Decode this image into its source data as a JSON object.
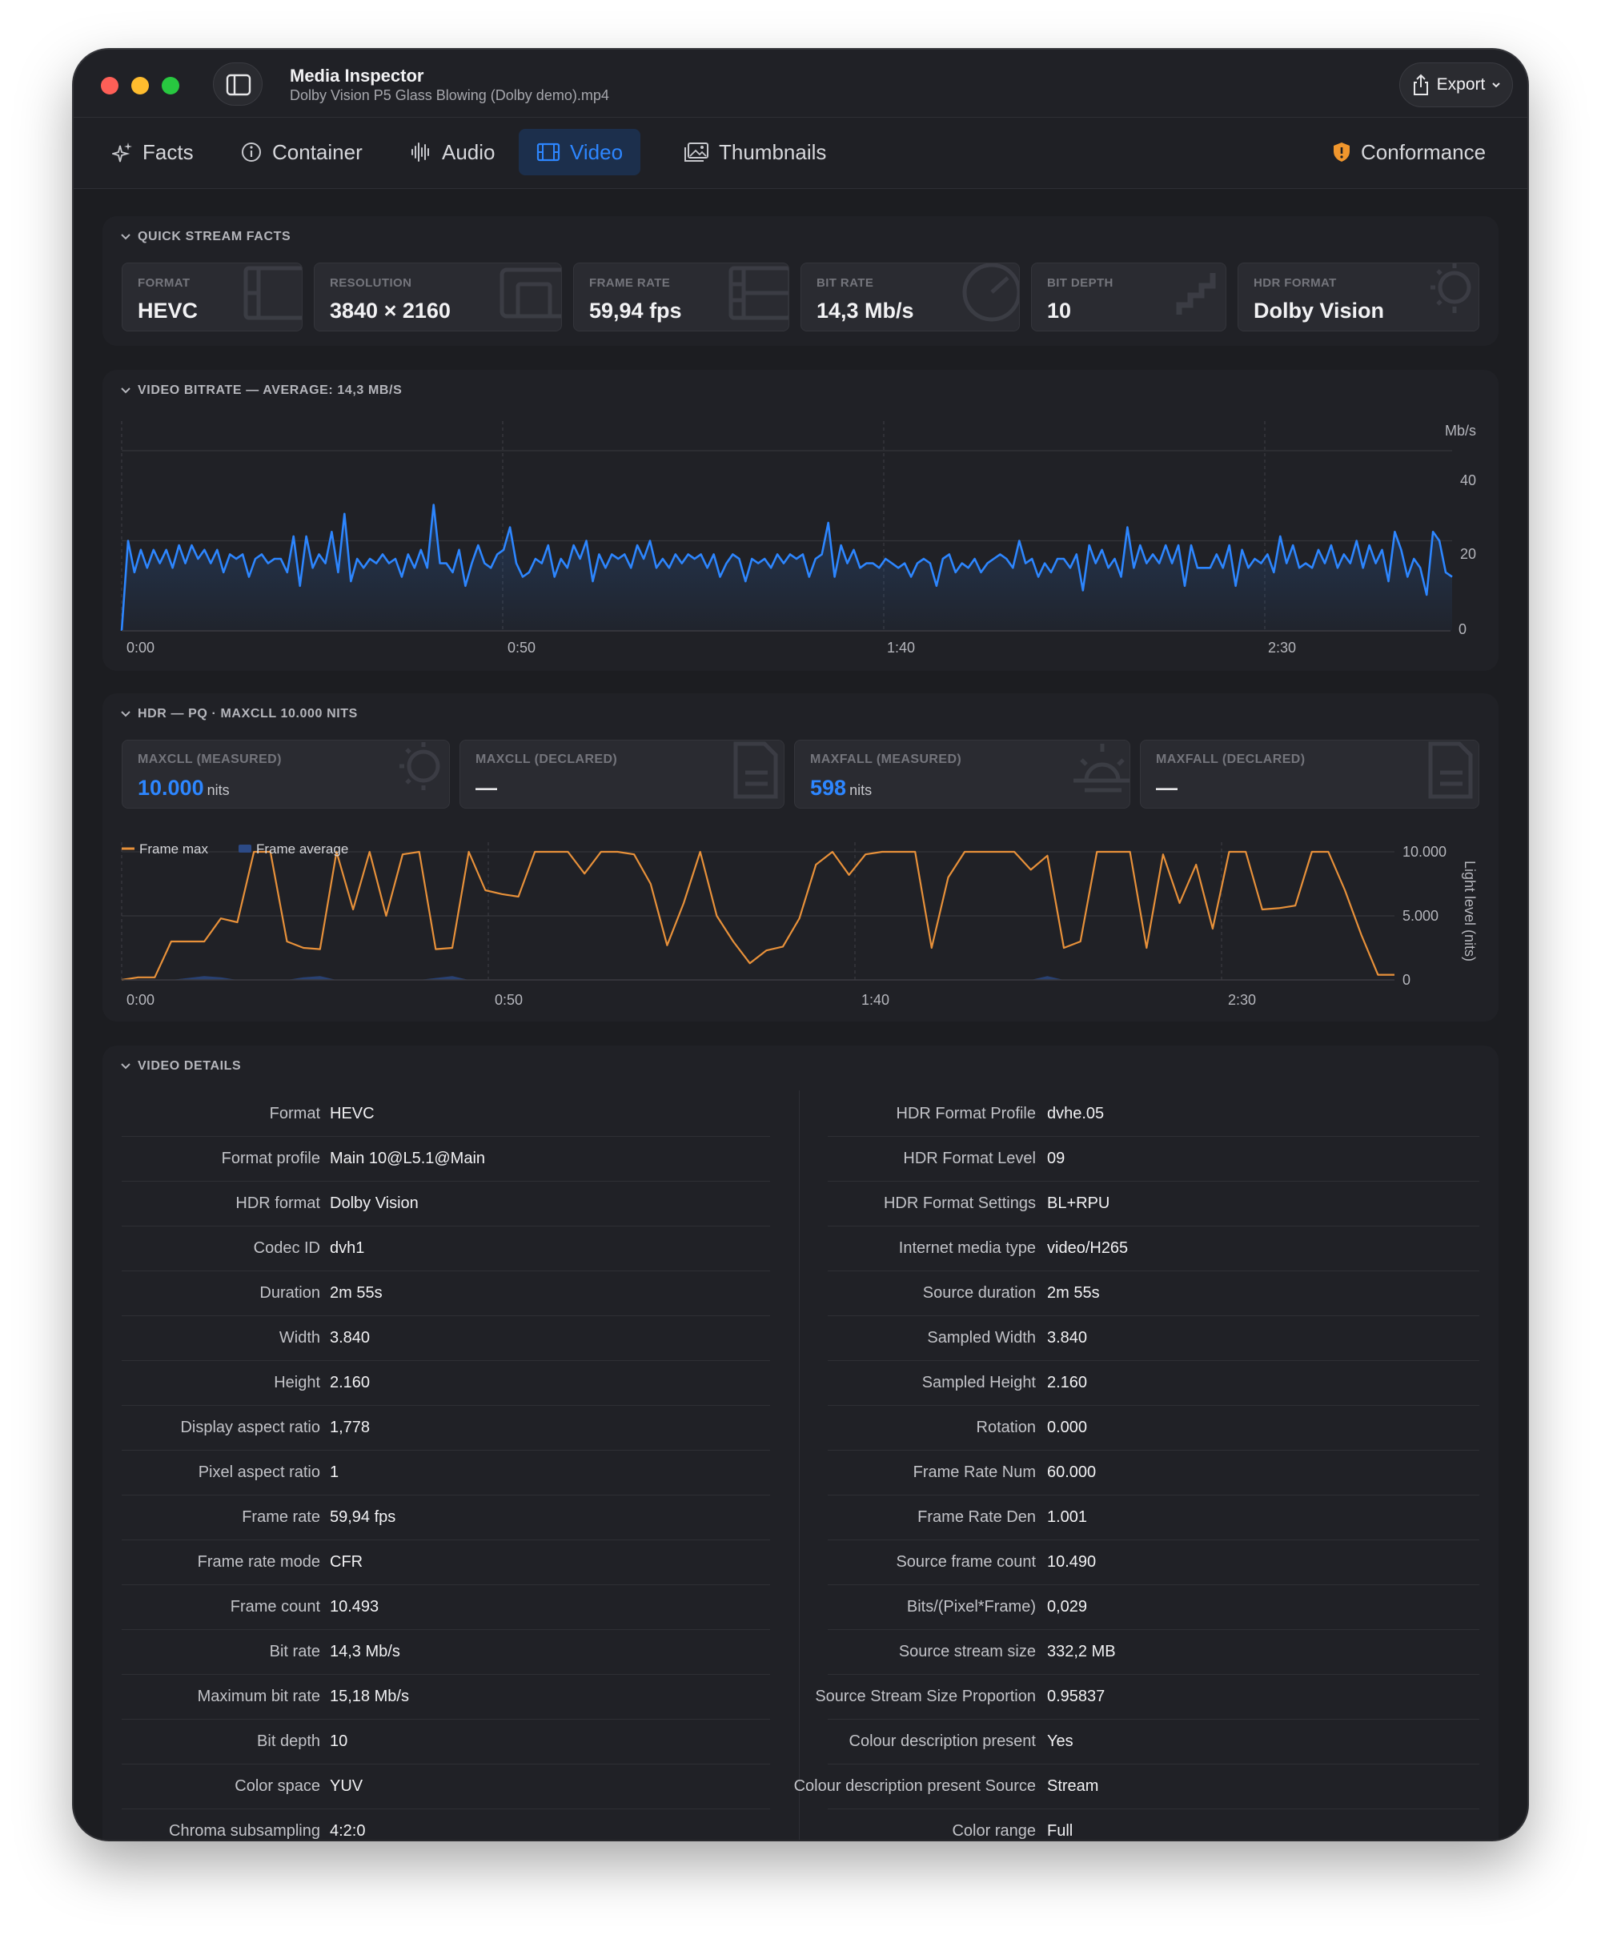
{
  "window": {
    "app_title": "Media Inspector",
    "file_name": "Dolby Vision P5 Glass Blowing (Dolby demo).mp4",
    "export_label": "Export"
  },
  "tabs": [
    {
      "label": "Facts",
      "icon": "sparkles-icon"
    },
    {
      "label": "Container",
      "icon": "info-icon"
    },
    {
      "label": "Audio",
      "icon": "waveform-icon"
    },
    {
      "label": "Video",
      "icon": "film-icon",
      "active": true
    },
    {
      "label": "Thumbnails",
      "icon": "photos-icon"
    },
    {
      "label": "Conformance",
      "icon": "warning-shield-icon"
    }
  ],
  "quick_facts": {
    "title": "QUICK STREAM FACTS",
    "items": [
      {
        "label": "FORMAT",
        "value": "HEVC"
      },
      {
        "label": "RESOLUTION",
        "value": "3840 × 2160"
      },
      {
        "label": "FRAME RATE",
        "value": "59,94 fps"
      },
      {
        "label": "BIT RATE",
        "value": "14,3 Mb/s"
      },
      {
        "label": "BIT DEPTH",
        "value": "10"
      },
      {
        "label": "HDR FORMAT",
        "value": "Dolby Vision"
      }
    ]
  },
  "bitrate_chart": {
    "title": "VIDEO BITRATE — AVERAGE: 14,3 MB/S",
    "unit_label": "Mb/s",
    "y_ticks": [
      "40",
      "20",
      "0"
    ],
    "x_ticks": [
      "0:00",
      "0:50",
      "1:40",
      "2:30"
    ]
  },
  "hdr": {
    "title": "HDR — PQ · MAXCLL 10.000 NITS",
    "cards": [
      {
        "label": "MAXCLL (MEASURED)",
        "value": "10.000",
        "unit": "nits"
      },
      {
        "label": "MAXCLL (DECLARED)",
        "value": "—",
        "unit": ""
      },
      {
        "label": "MAXFALL (MEASURED)",
        "value": "598",
        "unit": "nits"
      },
      {
        "label": "MAXFALL (DECLARED)",
        "value": "—",
        "unit": ""
      }
    ],
    "legend": [
      "Frame max",
      "Frame average"
    ],
    "y_ticks": [
      "10.000",
      "5.000",
      "0"
    ],
    "y_axis_label": "Light level (nits)",
    "x_ticks": [
      "0:00",
      "0:50",
      "1:40",
      "2:30"
    ]
  },
  "details": {
    "title": "VIDEO DETAILS",
    "left": [
      [
        "Format",
        "HEVC"
      ],
      [
        "Format profile",
        "Main 10@L5.1@Main"
      ],
      [
        "HDR format",
        "Dolby Vision"
      ],
      [
        "Codec ID",
        "dvh1"
      ],
      [
        "Duration",
        "2m 55s"
      ],
      [
        "Width",
        "3.840"
      ],
      [
        "Height",
        "2.160"
      ],
      [
        "Display aspect ratio",
        "1,778"
      ],
      [
        "Pixel aspect ratio",
        "1"
      ],
      [
        "Frame rate",
        "59,94 fps"
      ],
      [
        "Frame rate mode",
        "CFR"
      ],
      [
        "Frame count",
        "10.493"
      ],
      [
        "Bit rate",
        "14,3 Mb/s"
      ],
      [
        "Maximum bit rate",
        "15,18 Mb/s"
      ],
      [
        "Bit depth",
        "10"
      ],
      [
        "Color space",
        "YUV"
      ],
      [
        "Chroma subsampling",
        "4:2:0"
      ]
    ],
    "right": [
      [
        "HDR Format Profile",
        "dvhe.05"
      ],
      [
        "HDR Format Level",
        "09"
      ],
      [
        "HDR Format Settings",
        "BL+RPU"
      ],
      [
        "Internet media type",
        "video/H265"
      ],
      [
        "Source duration",
        "2m 55s"
      ],
      [
        "Sampled Width",
        "3.840"
      ],
      [
        "Sampled Height",
        "2.160"
      ],
      [
        "Rotation",
        "0.000"
      ],
      [
        "Frame Rate Num",
        "60.000"
      ],
      [
        "Frame Rate Den",
        "1.001"
      ],
      [
        "Source frame count",
        "10.490"
      ],
      [
        "Bits/(Pixel*Frame)",
        "0,029"
      ],
      [
        "Source stream size",
        "332,2 MB"
      ],
      [
        "Source Stream Size Proportion",
        "0.95837"
      ],
      [
        "Colour description present",
        "Yes"
      ],
      [
        "Colour description present Source",
        "Stream"
      ],
      [
        "Color range",
        "Full"
      ]
    ]
  },
  "colors": {
    "accent": "#2d86ff",
    "frame_max": "#e8913a",
    "frame_avg": "#2c4a86",
    "window_bg": "#1c1d21",
    "panel_bg": "#202126"
  },
  "chart_data": [
    {
      "type": "area",
      "title": "VIDEO BITRATE — AVERAGE: 14,3 MB/S",
      "ylabel": "Mb/s",
      "ylim": [
        0,
        48
      ],
      "xlim": [
        0,
        175
      ],
      "x_tick_labels": [
        "0:00",
        "0:50",
        "1:40",
        "2:30"
      ],
      "grid": true,
      "series": [
        {
          "values": [
            0,
            20,
            13,
            18,
            14,
            18,
            15,
            18,
            14,
            19,
            15,
            19,
            16,
            18,
            15,
            18,
            13,
            17,
            16,
            17,
            12,
            16,
            17,
            15,
            16,
            16,
            13,
            21,
            10,
            21,
            14,
            17,
            15,
            22,
            13,
            26,
            11,
            16,
            14,
            16,
            15,
            17,
            15,
            16,
            12,
            17,
            14,
            18,
            14,
            28,
            15,
            15,
            13,
            18,
            10,
            15,
            19,
            15,
            14,
            17,
            18,
            23,
            15,
            12,
            13,
            16,
            15,
            19,
            12,
            16,
            14,
            19,
            16,
            20,
            11,
            17,
            14,
            17,
            16,
            17,
            14,
            19,
            16,
            20,
            14,
            16,
            14,
            17,
            15,
            17,
            16,
            17,
            14,
            17,
            12,
            15,
            17,
            16,
            11,
            16,
            15,
            16,
            14,
            17,
            15,
            17,
            16,
            17,
            12,
            16,
            17,
            24,
            12,
            19,
            15,
            18,
            14,
            15,
            15,
            14,
            16,
            15,
            14,
            15,
            12,
            15,
            16,
            15,
            10,
            16,
            17,
            13,
            15,
            14,
            16,
            13,
            15,
            16,
            17,
            16,
            14,
            20,
            15,
            16,
            12,
            15,
            13,
            16,
            16,
            14,
            17,
            9,
            19,
            15,
            18,
            14,
            16,
            12,
            23,
            14,
            19,
            15,
            17,
            15,
            19,
            15,
            19,
            10,
            19,
            14,
            14,
            14,
            17,
            14,
            19,
            10,
            18,
            14,
            16,
            15,
            17,
            13,
            21,
            15,
            19,
            14,
            15,
            14,
            18,
            15,
            19,
            14,
            17,
            15,
            20,
            14,
            19,
            15,
            18,
            11,
            22,
            18,
            12,
            16,
            14,
            8,
            22,
            20,
            13,
            12
          ]
        }
      ]
    },
    {
      "type": "line",
      "title": "HDR — PQ · MAXCLL 10.000 NITS",
      "ylabel": "Light level (nits)",
      "ylim": [
        0,
        10000
      ],
      "xlim": [
        0,
        175
      ],
      "x_tick_labels": [
        "0:00",
        "0:50",
        "1:40",
        "2:30"
      ],
      "grid": true,
      "series": [
        {
          "name": "Frame max",
          "values": [
            0,
            200,
            200,
            3000,
            3000,
            3000,
            4800,
            4500,
            10000,
            10000,
            3000,
            2500,
            2400,
            10000,
            5500,
            10000,
            5000,
            9800,
            10000,
            2400,
            2500,
            10000,
            7000,
            6700,
            6500,
            10000,
            10000,
            10000,
            8300,
            10000,
            10000,
            9800,
            7500,
            2700,
            6000,
            10000,
            5000,
            3000,
            1300,
            2300,
            2600,
            4800,
            9000,
            10000,
            8200,
            9800,
            10000,
            10000,
            10000,
            2500,
            8000,
            10000,
            10000,
            10000,
            10000,
            8600,
            9700,
            2500,
            3000,
            10000,
            10000,
            10000,
            2500,
            9800,
            6000,
            9000,
            4000,
            10000,
            10000,
            5500,
            5600,
            5800,
            10000,
            10000,
            7000,
            3500,
            400,
            400
          ]
        },
        {
          "name": "Frame average",
          "values": [
            0,
            0,
            0,
            0,
            150,
            300,
            200,
            0,
            0,
            0,
            0,
            200,
            300,
            0,
            0,
            0,
            0,
            0,
            0,
            150,
            300,
            0,
            0,
            0,
            0,
            0,
            0,
            0,
            0,
            0,
            0,
            0,
            0,
            0,
            0,
            0,
            0,
            0,
            0,
            0,
            0,
            0,
            0,
            0,
            0,
            0,
            0,
            0,
            0,
            0,
            0,
            0,
            0,
            0,
            0,
            0,
            300,
            0,
            0,
            0,
            0,
            0,
            0,
            0,
            0,
            0,
            0,
            0,
            0,
            0,
            0,
            0,
            0,
            0,
            0,
            0,
            0,
            0
          ]
        }
      ]
    }
  ]
}
